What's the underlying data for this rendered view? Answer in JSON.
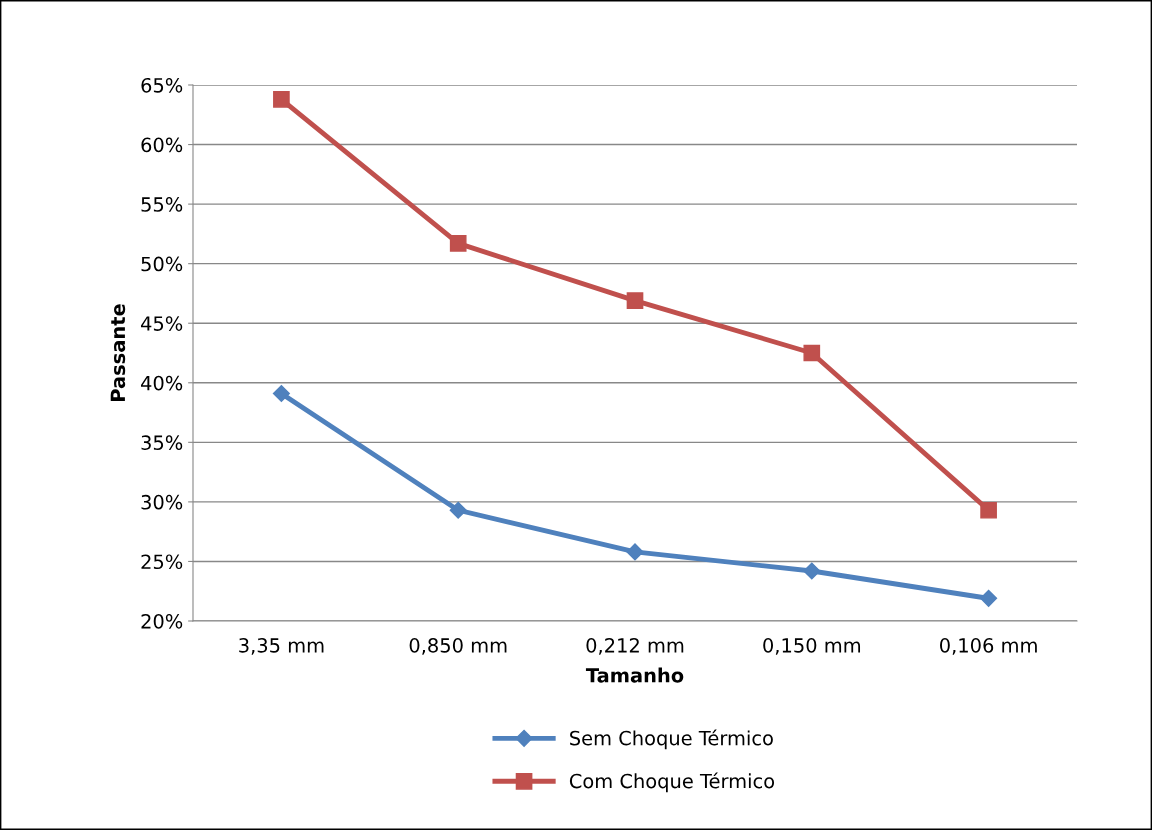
{
  "chart_data": {
    "type": "line",
    "xlabel": "Tamanho",
    "ylabel": "Passante",
    "categories": [
      "3,35 mm",
      "0,850 mm",
      "0,212 mm",
      "0,150 mm",
      "0,106 mm"
    ],
    "series": [
      {
        "name": "Sem Choque Térmico",
        "color": "#4f81bd",
        "marker": "diamond",
        "values": [
          39.1,
          29.3,
          25.8,
          24.2,
          21.9
        ]
      },
      {
        "name": "Com Choque Térmico",
        "color": "#c0504d",
        "marker": "square",
        "values": [
          63.8,
          51.7,
          46.9,
          42.5,
          29.3
        ]
      }
    ],
    "ylim": [
      20,
      65
    ],
    "yticks": [
      {
        "value": 20,
        "label": "20%"
      },
      {
        "value": 25,
        "label": "25%"
      },
      {
        "value": 30,
        "label": "30%"
      },
      {
        "value": 35,
        "label": "35%"
      },
      {
        "value": 40,
        "label": "40%"
      },
      {
        "value": 45,
        "label": "45%"
      },
      {
        "value": 50,
        "label": "50%"
      },
      {
        "value": 55,
        "label": "55%"
      },
      {
        "value": 60,
        "label": "60%"
      },
      {
        "value": 65,
        "label": "65%"
      }
    ],
    "grid": "y",
    "legend": "bottom",
    "line_style": "solid"
  }
}
